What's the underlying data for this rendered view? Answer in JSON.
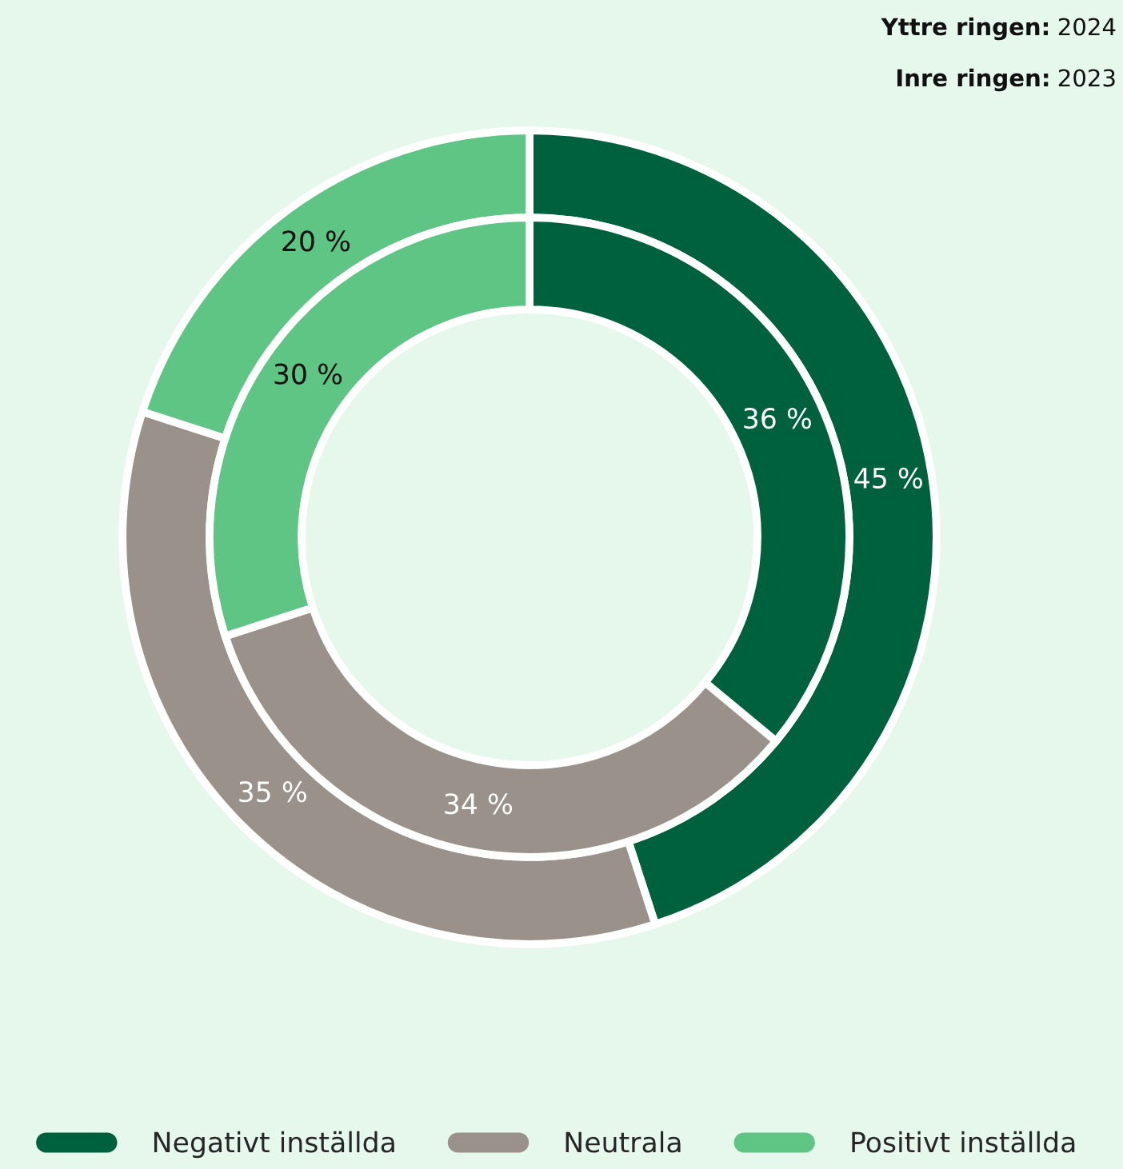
{
  "chart_data": {
    "type": "donut",
    "categories": [
      "Negativt inställda",
      "Neutrala",
      "Positivt inställda"
    ],
    "colors": [
      "#00613f",
      "#99918a",
      "#5fc584"
    ],
    "series": [
      {
        "values": [
          45,
          35,
          20
        ],
        "value_labels": [
          "45 %",
          "35 %",
          "20 %"
        ]
      },
      {
        "values": [
          36,
          34,
          30
        ],
        "value_labels": [
          "36 %",
          "34 %",
          "30 %"
        ]
      }
    ],
    "annotations": [
      "Yttre ringen: 2024",
      "Inre ringen: 2023"
    ],
    "legend": "bottom"
  }
}
